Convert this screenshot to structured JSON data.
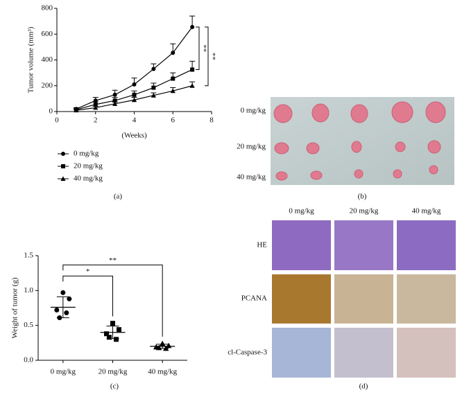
{
  "chart_data": [
    {
      "type": "line",
      "y_label": "Tumor volume (mm³)",
      "x_label": "(Weeks)",
      "x": [
        1,
        2,
        3,
        4,
        5,
        6,
        7
      ],
      "xlim": [
        0,
        8
      ],
      "xticks": [
        0,
        2,
        4,
        6,
        8
      ],
      "ylim": [
        0,
        800
      ],
      "yticks": [
        0,
        200,
        400,
        600,
        800
      ],
      "series": [
        {
          "name": "0 mg/kg",
          "color": "#000000",
          "marker": "circle",
          "values": [
            20,
            85,
            130,
            210,
            330,
            455,
            655
          ],
          "errors": [
            10,
            25,
            35,
            50,
            40,
            70,
            85
          ]
        },
        {
          "name": "20 mg/kg",
          "color": "#000000",
          "marker": "square",
          "values": [
            15,
            55,
            85,
            130,
            185,
            255,
            325
          ],
          "errors": [
            8,
            20,
            25,
            30,
            35,
            45,
            65
          ]
        },
        {
          "name": "40 mg/kg",
          "color": "#000000",
          "marker": "triangle",
          "values": [
            10,
            30,
            60,
            90,
            125,
            160,
            200
          ],
          "errors": [
            5,
            10,
            15,
            20,
            20,
            25,
            30
          ]
        }
      ],
      "annotations": [
        "**",
        "**"
      ]
    },
    {
      "type": "dot-plot",
      "y_label": "Weight of tumor (g)",
      "categories": [
        "0 mg/kg",
        "20 mg/kg",
        "40 mg/kg"
      ],
      "markers": [
        "circle",
        "square",
        "triangle"
      ],
      "points": [
        [
          0.97,
          0.88,
          0.72,
          0.68,
          0.61
        ],
        [
          0.53,
          0.44,
          0.38,
          0.3,
          0.33
        ],
        [
          0.24,
          0.21,
          0.19,
          0.17,
          0.18
        ]
      ],
      "means": [
        0.76,
        0.4,
        0.2
      ],
      "sds": [
        0.15,
        0.09,
        0.03
      ],
      "ylim": [
        0,
        1.5
      ],
      "yticks": [
        {
          "value": 0,
          "label": "0.0"
        },
        {
          "value": 0.5,
          "label": "0.5"
        },
        {
          "value": 1,
          "label": "1.0"
        },
        {
          "value": 1.5,
          "label": "1.5"
        }
      ],
      "annotations": [
        "*",
        "**"
      ]
    }
  ],
  "panel_labels": [
    "(a)",
    "(b)",
    "(c)",
    "(d)"
  ],
  "tumor_photo": {
    "rows": [
      "0 mg/kg",
      "20 mg/kg",
      "40 mg/kg"
    ]
  },
  "histology": {
    "columns": [
      "0 mg/kg",
      "20 mg/kg",
      "40 mg/kg"
    ],
    "rows": [
      "HE",
      "PCANA",
      "cl-Caspase-3"
    ]
  }
}
